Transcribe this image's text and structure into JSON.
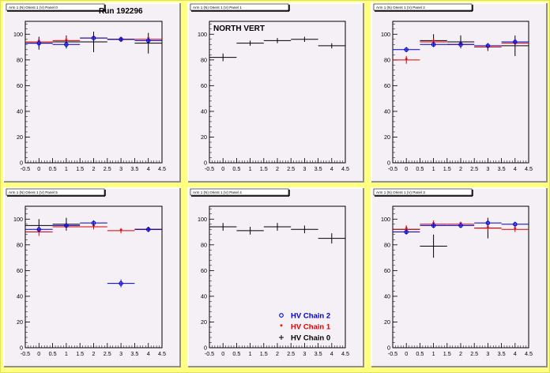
{
  "run_label": "Run 192296",
  "north_label": "NORTH VERT",
  "colors": {
    "chain0": "#000000",
    "chain1": "#dd0000",
    "chain2": "#0000cc"
  },
  "legend": [
    {
      "label": "HV Chain 2",
      "series": "chain2",
      "marker": "circle"
    },
    {
      "label": "HV Chain 1",
      "series": "chain1",
      "marker": "star"
    },
    {
      "label": "HV Chain 0",
      "series": "chain0",
      "marker": "plus"
    }
  ],
  "chart_data": [
    {
      "type": "scatter",
      "title": "Arm 1 (N) Orient 1 (V) Panel 0",
      "xlim": [
        -0.5,
        4.5
      ],
      "ylim": [
        0,
        110
      ],
      "xticks": [
        "-0.5",
        "0",
        "0.5",
        "1",
        "1.5",
        "2",
        "2.5",
        "3",
        "3.5",
        "4",
        "4.5"
      ],
      "yticks": [
        "0",
        "20",
        "40",
        "60",
        "80",
        "100"
      ],
      "series": [
        {
          "key": "chain0",
          "x": [
            0,
            1,
            2,
            3,
            4
          ],
          "y": [
            93,
            94,
            94,
            96,
            93
          ],
          "yerr": [
            5,
            5,
            8,
            2,
            8
          ]
        },
        {
          "key": "chain1",
          "x": [
            0,
            1,
            2,
            3,
            4
          ],
          "y": [
            94,
            95,
            97,
            96,
            96
          ],
          "yerr": [
            3,
            3,
            2,
            2,
            2
          ]
        },
        {
          "key": "chain2",
          "x": [
            0,
            1,
            2,
            3,
            4
          ],
          "y": [
            93,
            92,
            97,
            96,
            95
          ],
          "yerr": [
            3,
            3,
            2,
            2,
            2
          ]
        }
      ]
    },
    {
      "type": "scatter",
      "title": "Arm 1 (N) Orient 1 (V) Panel 1",
      "xlim": [
        -0.5,
        4.5
      ],
      "ylim": [
        0,
        110
      ],
      "xticks": [
        "-0.5",
        "0",
        "0.5",
        "1",
        "1.5",
        "2",
        "2.5",
        "3",
        "3.5",
        "4",
        "4.5"
      ],
      "yticks": [
        "0",
        "20",
        "40",
        "60",
        "80",
        "100"
      ],
      "series": [
        {
          "key": "chain0",
          "x": [
            0,
            1,
            2,
            3,
            4
          ],
          "y": [
            82,
            93,
            95,
            96,
            91
          ],
          "yerr": [
            3,
            2,
            2,
            2,
            2
          ]
        }
      ]
    },
    {
      "type": "scatter",
      "title": "Arm 1 (N) Orient 1 (V) Panel 2",
      "xlim": [
        -0.5,
        4.5
      ],
      "ylim": [
        0,
        110
      ],
      "xticks": [
        "-0.5",
        "0",
        "0.5",
        "1",
        "1.5",
        "2",
        "2.5",
        "3",
        "3.5",
        "4",
        "4.5"
      ],
      "yticks": [
        "0",
        "20",
        "40",
        "60",
        "80",
        "100"
      ],
      "series": [
        {
          "key": "chain0",
          "x": [
            1,
            2,
            3,
            4
          ],
          "y": [
            95,
            94,
            90,
            91
          ],
          "yerr": [
            5,
            5,
            3,
            8
          ]
        },
        {
          "key": "chain1",
          "x": [
            0,
            1,
            2,
            3,
            4
          ],
          "y": [
            80,
            94,
            92,
            90,
            93
          ],
          "yerr": [
            3,
            3,
            2,
            2,
            2
          ]
        },
        {
          "key": "chain2",
          "x": [
            0,
            1,
            2,
            3,
            4
          ],
          "y": [
            88,
            92,
            92,
            91,
            94
          ],
          "yerr": [
            2,
            2,
            2,
            2,
            2
          ]
        }
      ]
    },
    {
      "type": "scatter",
      "title": "Arm 1 (N) Orient 1 (V) Panel 5",
      "xlim": [
        -0.5,
        4.5
      ],
      "ylim": [
        0,
        110
      ],
      "xticks": [
        "-0.5",
        "0",
        "0.5",
        "1",
        "1.5",
        "2",
        "2.5",
        "3",
        "3.5",
        "4",
        "4.5"
      ],
      "yticks": [
        "0",
        "20",
        "40",
        "60",
        "80",
        "100"
      ],
      "series": [
        {
          "key": "chain0",
          "x": [
            0,
            1,
            4
          ],
          "y": [
            95,
            96,
            92
          ],
          "yerr": [
            5,
            5,
            2
          ]
        },
        {
          "key": "chain1",
          "x": [
            0,
            1,
            2,
            3,
            4
          ],
          "y": [
            90,
            94,
            94,
            91,
            92
          ],
          "yerr": [
            3,
            2,
            2,
            2,
            2
          ]
        },
        {
          "key": "chain2",
          "x": [
            0,
            1,
            2,
            3,
            4
          ],
          "y": [
            92,
            95,
            97,
            50,
            92
          ],
          "yerr": [
            2,
            2,
            2,
            3,
            2
          ]
        }
      ]
    },
    {
      "type": "scatter",
      "title": "Arm 1 (N) Orient 1 (V) Panel 4",
      "xlim": [
        -0.5,
        4.5
      ],
      "ylim": [
        0,
        110
      ],
      "xticks": [
        "-0.5",
        "0",
        "0.5",
        "1",
        "1.5",
        "2",
        "2.5",
        "3",
        "3.5",
        "4",
        "4.5"
      ],
      "yticks": [
        "0",
        "20",
        "40",
        "60",
        "80",
        "100"
      ],
      "series": [
        {
          "key": "chain0",
          "x": [
            0,
            1,
            2,
            3,
            4
          ],
          "y": [
            94,
            91,
            94,
            92,
            85
          ],
          "yerr": [
            3,
            3,
            3,
            3,
            4
          ]
        }
      ]
    },
    {
      "type": "scatter",
      "title": "Arm 1 (N) Orient 1 (V) Panel 3",
      "xlim": [
        -0.5,
        4.5
      ],
      "ylim": [
        0,
        110
      ],
      "xticks": [
        "-0.5",
        "0",
        "0.5",
        "1",
        "1.5",
        "2",
        "2.5",
        "3",
        "3.5",
        "4",
        "4.5"
      ],
      "yticks": [
        "0",
        "20",
        "40",
        "60",
        "80",
        "100"
      ],
      "series": [
        {
          "key": "chain0",
          "x": [
            0,
            1,
            3
          ],
          "y": [
            92,
            79,
            93
          ],
          "yerr": [
            3,
            9,
            8
          ]
        },
        {
          "key": "chain1",
          "x": [
            0,
            1,
            2,
            3,
            4
          ],
          "y": [
            92,
            96,
            96,
            93,
            92
          ],
          "yerr": [
            3,
            3,
            2,
            2,
            2
          ]
        },
        {
          "key": "chain2",
          "x": [
            0,
            1,
            2,
            3,
            4
          ],
          "y": [
            90,
            95,
            95,
            97,
            96
          ],
          "yerr": [
            2,
            2,
            2,
            2,
            2
          ]
        }
      ]
    }
  ]
}
